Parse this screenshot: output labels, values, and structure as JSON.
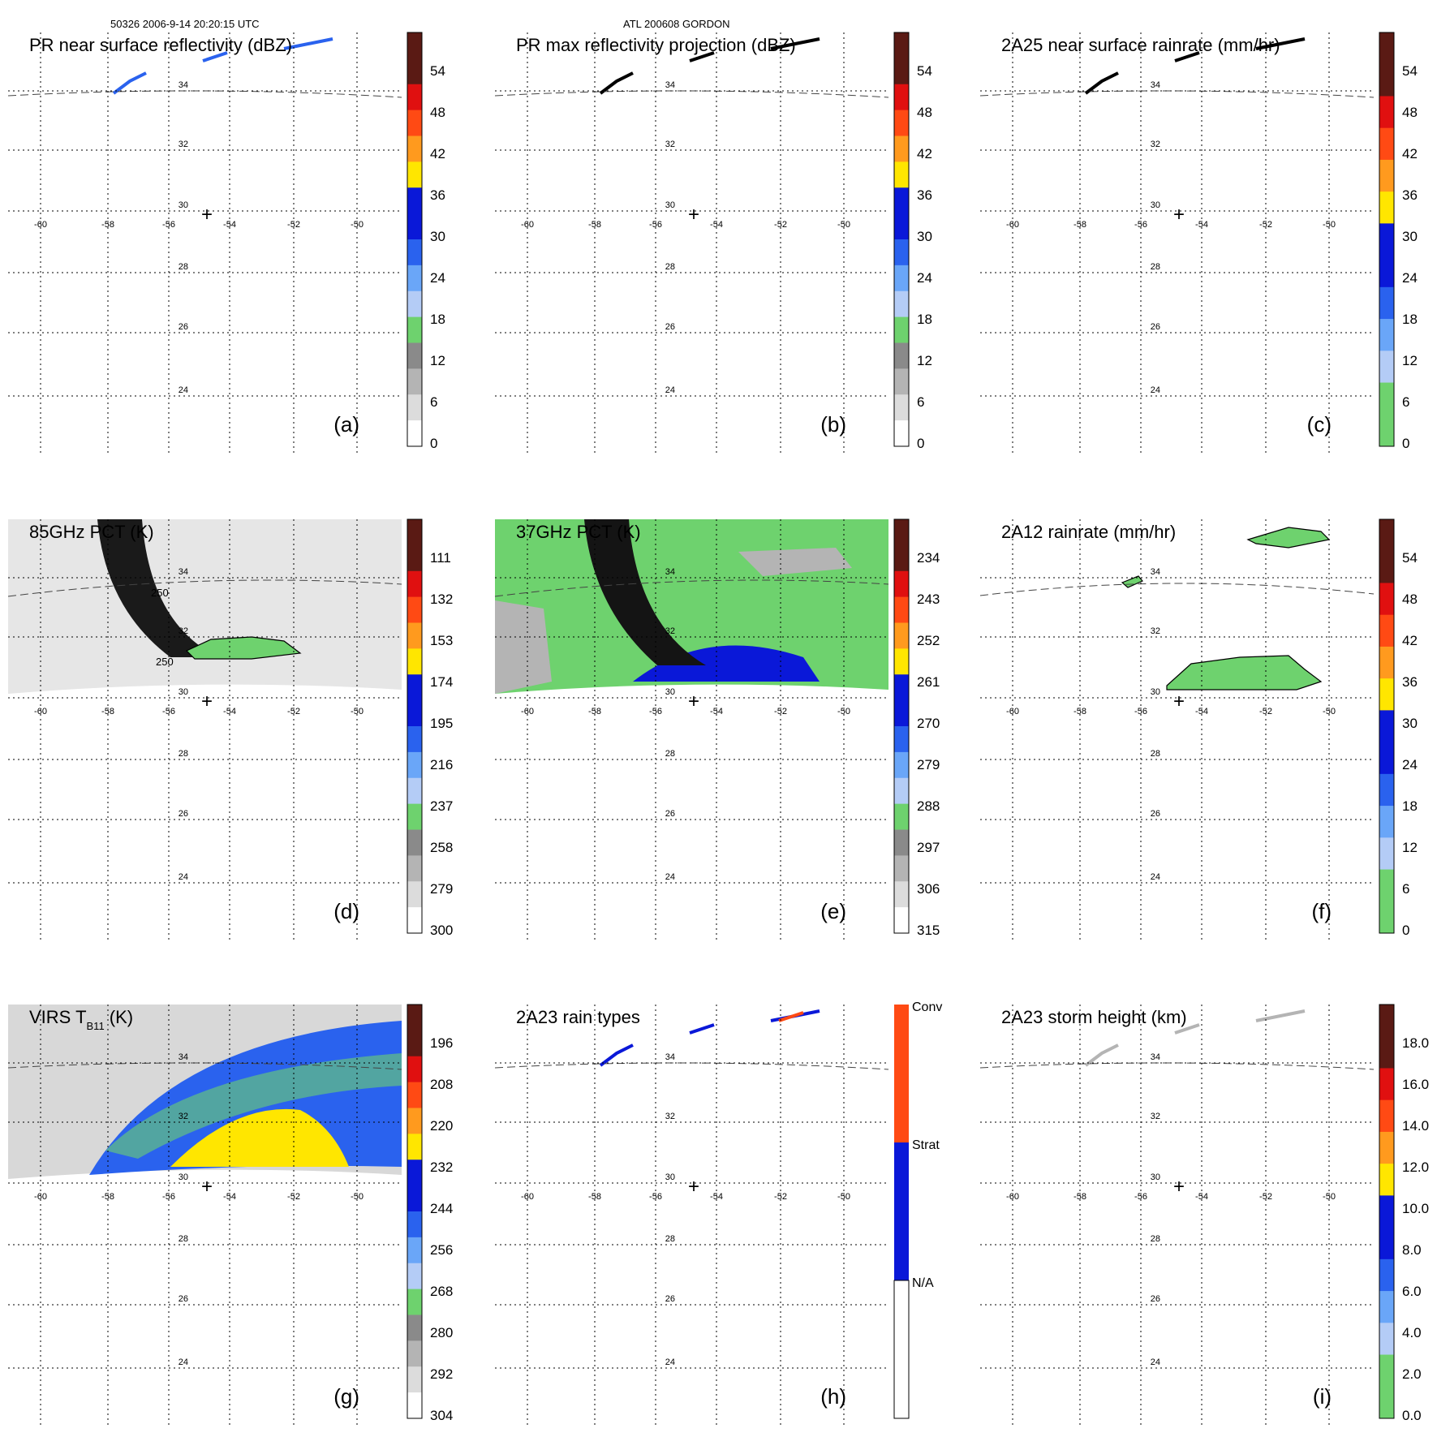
{
  "header": {
    "left": "50326 2006-9-14 20:20:15 UTC",
    "center": "ATL 200608 GORDON"
  },
  "axes": {
    "lon_ticks": [
      "-60",
      "-58",
      "-56",
      "-54",
      "-52",
      "-50"
    ],
    "lat_ticks": [
      "34",
      "32",
      "30",
      "28",
      "26",
      "24"
    ],
    "center_marker": "+"
  },
  "panels": [
    {
      "id": "a",
      "title": "PR near surface reflectivity (dBZ)",
      "letter": "(a)",
      "colorbar": {
        "type": "dbz",
        "labels": [
          "54",
          "48",
          "42",
          "36",
          "30",
          "24",
          "18",
          "12",
          "6",
          "0"
        ]
      }
    },
    {
      "id": "b",
      "title": "PR max reflectivity projection (dBZ)",
      "letter": "(b)",
      "colorbar": {
        "type": "dbz",
        "labels": [
          "54",
          "48",
          "42",
          "36",
          "30",
          "24",
          "18",
          "12",
          "6",
          "0"
        ]
      }
    },
    {
      "id": "c",
      "title": "2A25 near surface rainrate (mm/hr)",
      "letter": "(c)",
      "colorbar": {
        "type": "rain",
        "labels": [
          "54",
          "48",
          "42",
          "36",
          "30",
          "24",
          "18",
          "12",
          "6",
          "0"
        ]
      }
    },
    {
      "id": "d",
      "title": "85GHz PCT (K)",
      "letter": "(d)",
      "colorbar": {
        "type": "tb",
        "labels": [
          "111",
          "132",
          "153",
          "174",
          "195",
          "216",
          "237",
          "258",
          "279",
          "300"
        ]
      },
      "contour_labels": [
        "250",
        "250"
      ]
    },
    {
      "id": "e",
      "title": "37GHz PCT (K)",
      "letter": "(e)",
      "colorbar": {
        "type": "tb",
        "labels": [
          "234",
          "243",
          "252",
          "261",
          "270",
          "279",
          "288",
          "297",
          "306",
          "315"
        ]
      }
    },
    {
      "id": "f",
      "title": "2A12 rainrate (mm/hr)",
      "letter": "(f)",
      "colorbar": {
        "type": "rain",
        "labels": [
          "54",
          "48",
          "42",
          "36",
          "30",
          "24",
          "18",
          "12",
          "6",
          "0"
        ]
      }
    },
    {
      "id": "g",
      "title": "VIRS T",
      "title_sub": "B11",
      "title_suffix": " (K)",
      "letter": "(g)",
      "colorbar": {
        "type": "tb",
        "labels": [
          "196",
          "208",
          "220",
          "232",
          "244",
          "256",
          "268",
          "280",
          "292",
          "304"
        ]
      }
    },
    {
      "id": "h",
      "title": "2A23 rain types",
      "letter": "(h)",
      "colorbar": {
        "type": "raintype",
        "labels": [
          "Conv",
          "Strat",
          "N/A"
        ]
      }
    },
    {
      "id": "i",
      "title": "2A23 storm height (km)",
      "letter": "(i)",
      "colorbar": {
        "type": "rain",
        "labels": [
          "18.0",
          "16.0",
          "14.0",
          "12.0",
          "10.0",
          "8.0",
          "6.0",
          "4.0",
          "2.0",
          "0.0"
        ]
      }
    }
  ],
  "palette": {
    "dark_red": "#5a1a14",
    "red": "#e01010",
    "orange_red": "#ff4a14",
    "orange": "#ff9a1e",
    "yellow": "#ffe600",
    "blue_dark": "#0a18d8",
    "blue": "#2a62ee",
    "blue_light": "#6aa6f8",
    "blue_pale": "#b4ccf6",
    "green": "#6ed26e",
    "gray_dark": "#8a8a8a",
    "gray": "#b4b4b4",
    "gray_light": "#dcdcdc",
    "white": "#ffffff"
  }
}
